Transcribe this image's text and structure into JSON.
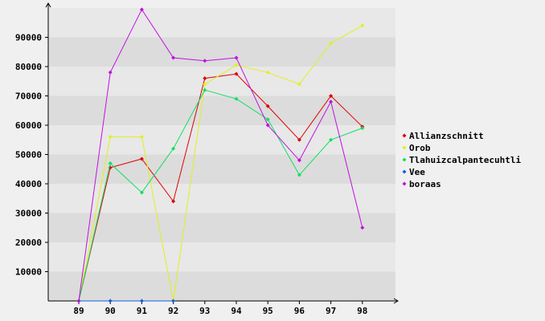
{
  "chart_data": {
    "type": "line",
    "x": [
      89,
      90,
      91,
      92,
      93,
      94,
      95,
      96,
      97,
      98
    ],
    "y_ticks": [
      10000,
      20000,
      30000,
      40000,
      50000,
      60000,
      70000,
      80000,
      90000
    ],
    "ylim": [
      0,
      100000
    ],
    "grid": "horizontal alternating bands",
    "legend_position": "right",
    "series": [
      {
        "name": "Allianzschnitt",
        "color": "#e00000",
        "values": [
          0,
          45500,
          48500,
          34000,
          76000,
          77500,
          66500,
          55000,
          70000,
          59500
        ]
      },
      {
        "name": "Orob",
        "color": "#e0f020",
        "values": [
          0,
          56000,
          56000,
          0,
          74000,
          80500,
          78000,
          74000,
          88000,
          94000
        ]
      },
      {
        "name": "Tlahuizcalpantecuhtli",
        "color": "#10e060",
        "values": [
          0,
          47000,
          37000,
          52000,
          72000,
          69000,
          62000,
          43000,
          55000,
          59000
        ]
      },
      {
        "name": "Vee",
        "color": "#1060e0",
        "values": [
          0,
          0,
          0,
          0,
          null,
          null,
          null,
          null,
          null,
          null
        ]
      },
      {
        "name": "boraas",
        "color": "#c010e0",
        "values": [
          0,
          78000,
          99500,
          83000,
          82000,
          83000,
          60000,
          48000,
          68000,
          25000
        ]
      }
    ]
  }
}
